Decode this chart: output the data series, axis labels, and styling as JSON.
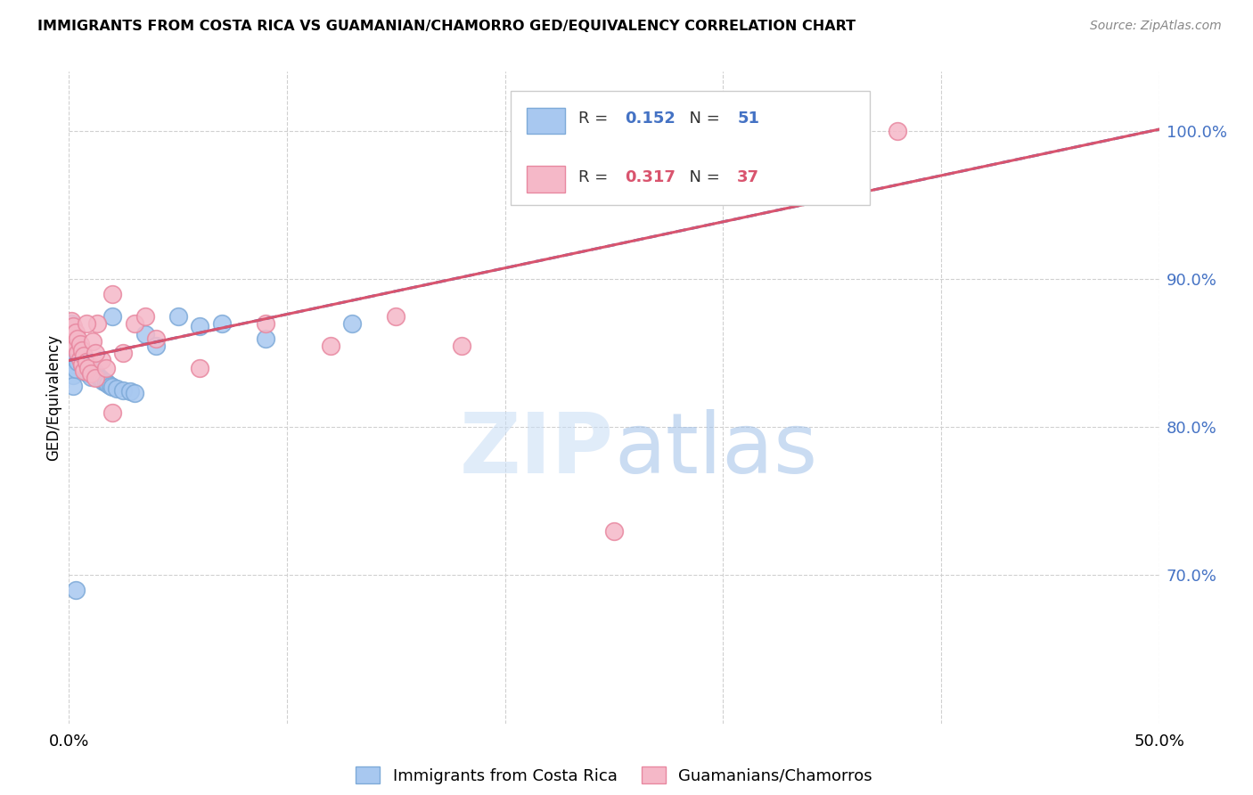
{
  "title": "IMMIGRANTS FROM COSTA RICA VS GUAMANIAN/CHAMORRO GED/EQUIVALENCY CORRELATION CHART",
  "source": "Source: ZipAtlas.com",
  "ylabel": "GED/Equivalency",
  "xlim": [
    0.0,
    0.5
  ],
  "ylim": [
    0.6,
    1.04
  ],
  "ytick_positions": [
    0.7,
    0.8,
    0.9,
    1.0
  ],
  "ytick_labels": [
    "70.0%",
    "80.0%",
    "90.0%",
    "100.0%"
  ],
  "ytick_color": "#4472c4",
  "series1_color": "#a8c8f0",
  "series2_color": "#f5b8c8",
  "series1_edge": "#7eaad8",
  "series2_edge": "#e888a0",
  "line1_color": "#4472c4",
  "line2_color": "#d9546e",
  "R1": 0.152,
  "N1": 51,
  "R2": 0.317,
  "N2": 37,
  "legend_label1": "Immigrants from Costa Rica",
  "legend_label2": "Guamanians/Chamorros",
  "watermark": "ZIPatlas",
  "background_color": "#ffffff",
  "grid_color": "#d0d0d0",
  "title_fontsize": 11.5,
  "line1_x0": 0.0,
  "line1_y0": 0.845,
  "line1_x1": 0.5,
  "line1_y1": 1.001,
  "line2_x0": 0.0,
  "line2_y0": 0.845,
  "line2_x1": 0.5,
  "line2_y1": 1.001,
  "s1_x": [
    0.001,
    0.001,
    0.001,
    0.001,
    0.002,
    0.002,
    0.002,
    0.002,
    0.002,
    0.003,
    0.003,
    0.003,
    0.003,
    0.004,
    0.004,
    0.004,
    0.005,
    0.005,
    0.006,
    0.006,
    0.007,
    0.007,
    0.008,
    0.008,
    0.009,
    0.009,
    0.01,
    0.01,
    0.011,
    0.012,
    0.013,
    0.014,
    0.015,
    0.016,
    0.017,
    0.018,
    0.019,
    0.02,
    0.022,
    0.025,
    0.028,
    0.03,
    0.035,
    0.04,
    0.05,
    0.06,
    0.07,
    0.09,
    0.13,
    0.003,
    0.02
  ],
  "s1_y": [
    0.87,
    0.863,
    0.857,
    0.851,
    0.855,
    0.848,
    0.842,
    0.835,
    0.828,
    0.86,
    0.853,
    0.846,
    0.839,
    0.858,
    0.851,
    0.844,
    0.853,
    0.847,
    0.848,
    0.842,
    0.846,
    0.84,
    0.844,
    0.837,
    0.843,
    0.836,
    0.841,
    0.834,
    0.839,
    0.837,
    0.835,
    0.833,
    0.832,
    0.831,
    0.83,
    0.829,
    0.828,
    0.827,
    0.826,
    0.825,
    0.824,
    0.823,
    0.863,
    0.855,
    0.875,
    0.868,
    0.87,
    0.86,
    0.87,
    0.69,
    0.875
  ],
  "s2_x": [
    0.001,
    0.001,
    0.002,
    0.002,
    0.003,
    0.003,
    0.004,
    0.004,
    0.005,
    0.005,
    0.006,
    0.006,
    0.007,
    0.007,
    0.008,
    0.009,
    0.01,
    0.011,
    0.012,
    0.013,
    0.015,
    0.017,
    0.02,
    0.025,
    0.03,
    0.04,
    0.06,
    0.09,
    0.12,
    0.15,
    0.18,
    0.25,
    0.38,
    0.02,
    0.008,
    0.012,
    0.035
  ],
  "s2_y": [
    0.872,
    0.862,
    0.868,
    0.858,
    0.864,
    0.854,
    0.86,
    0.85,
    0.856,
    0.846,
    0.852,
    0.842,
    0.848,
    0.838,
    0.844,
    0.84,
    0.836,
    0.858,
    0.833,
    0.87,
    0.845,
    0.84,
    0.89,
    0.85,
    0.87,
    0.86,
    0.84,
    0.87,
    0.855,
    0.875,
    0.855,
    0.73,
    1.0,
    0.81,
    0.87,
    0.85,
    0.875
  ]
}
